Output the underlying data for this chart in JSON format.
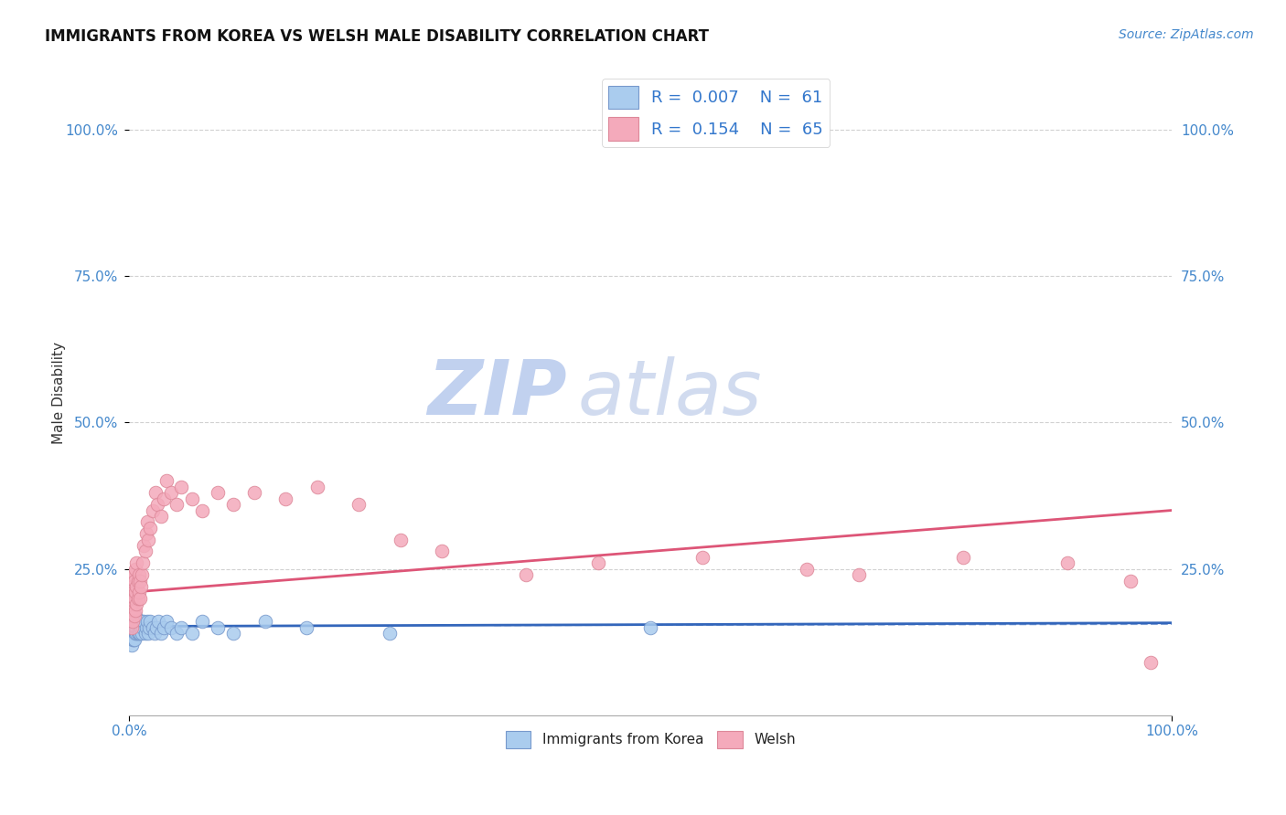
{
  "title": "IMMIGRANTS FROM KOREA VS WELSH MALE DISABILITY CORRELATION CHART",
  "source_text": "Source: ZipAtlas.com",
  "ylabel": "Male Disability",
  "xlim": [
    0.0,
    1.0
  ],
  "ylim": [
    0.0,
    1.1
  ],
  "y_tick_positions": [
    0.25,
    0.5,
    0.75,
    1.0
  ],
  "y_tick_labels": [
    "25.0%",
    "50.0%",
    "75.0%",
    "100.0%"
  ],
  "background_color": "#ffffff",
  "grid_color": "#cccccc",
  "watermark_zip": "ZIP",
  "watermark_atlas": "atlas",
  "watermark_color": "#ccddf0",
  "korea_color": "#aaccee",
  "welsh_color": "#f4aabb",
  "korea_edge_color": "#7799cc",
  "welsh_edge_color": "#dd8899",
  "korea_line_color": "#3366bb",
  "welsh_line_color": "#dd5577",
  "korea_scatter_x": [
    0.001,
    0.001,
    0.001,
    0.001,
    0.002,
    0.002,
    0.002,
    0.002,
    0.002,
    0.003,
    0.003,
    0.003,
    0.003,
    0.004,
    0.004,
    0.004,
    0.004,
    0.005,
    0.005,
    0.005,
    0.006,
    0.006,
    0.006,
    0.007,
    0.007,
    0.007,
    0.008,
    0.008,
    0.009,
    0.009,
    0.01,
    0.01,
    0.011,
    0.012,
    0.012,
    0.013,
    0.014,
    0.015,
    0.016,
    0.017,
    0.018,
    0.019,
    0.02,
    0.022,
    0.024,
    0.026,
    0.028,
    0.03,
    0.033,
    0.036,
    0.04,
    0.045,
    0.05,
    0.06,
    0.07,
    0.085,
    0.1,
    0.13,
    0.17,
    0.25,
    0.5
  ],
  "korea_scatter_y": [
    0.14,
    0.15,
    0.16,
    0.17,
    0.12,
    0.14,
    0.15,
    0.16,
    0.17,
    0.13,
    0.14,
    0.15,
    0.17,
    0.13,
    0.15,
    0.16,
    0.17,
    0.13,
    0.15,
    0.16,
    0.14,
    0.15,
    0.17,
    0.14,
    0.15,
    0.16,
    0.14,
    0.16,
    0.14,
    0.16,
    0.14,
    0.16,
    0.15,
    0.14,
    0.16,
    0.15,
    0.16,
    0.14,
    0.15,
    0.16,
    0.14,
    0.15,
    0.16,
    0.15,
    0.14,
    0.15,
    0.16,
    0.14,
    0.15,
    0.16,
    0.15,
    0.14,
    0.15,
    0.14,
    0.16,
    0.15,
    0.14,
    0.16,
    0.15,
    0.14,
    0.15
  ],
  "welsh_scatter_x": [
    0.001,
    0.001,
    0.001,
    0.002,
    0.002,
    0.002,
    0.002,
    0.003,
    0.003,
    0.003,
    0.004,
    0.004,
    0.004,
    0.005,
    0.005,
    0.005,
    0.006,
    0.006,
    0.006,
    0.007,
    0.007,
    0.007,
    0.008,
    0.008,
    0.009,
    0.009,
    0.01,
    0.01,
    0.011,
    0.012,
    0.013,
    0.014,
    0.015,
    0.016,
    0.017,
    0.018,
    0.02,
    0.022,
    0.025,
    0.027,
    0.03,
    0.033,
    0.036,
    0.04,
    0.045,
    0.05,
    0.06,
    0.07,
    0.085,
    0.1,
    0.12,
    0.15,
    0.18,
    0.22,
    0.26,
    0.3,
    0.38,
    0.45,
    0.55,
    0.65,
    0.7,
    0.8,
    0.9,
    0.96,
    0.98
  ],
  "welsh_scatter_y": [
    0.18,
    0.2,
    0.22,
    0.15,
    0.18,
    0.2,
    0.24,
    0.16,
    0.19,
    0.22,
    0.18,
    0.21,
    0.24,
    0.17,
    0.2,
    0.23,
    0.18,
    0.21,
    0.25,
    0.19,
    0.22,
    0.26,
    0.2,
    0.23,
    0.21,
    0.24,
    0.2,
    0.23,
    0.22,
    0.24,
    0.26,
    0.29,
    0.28,
    0.31,
    0.33,
    0.3,
    0.32,
    0.35,
    0.38,
    0.36,
    0.34,
    0.37,
    0.4,
    0.38,
    0.36,
    0.39,
    0.37,
    0.35,
    0.38,
    0.36,
    0.38,
    0.37,
    0.39,
    0.36,
    0.3,
    0.28,
    0.24,
    0.26,
    0.27,
    0.25,
    0.24,
    0.27,
    0.26,
    0.23,
    0.09
  ],
  "korea_line_x0": 0.0,
  "korea_line_x1": 1.0,
  "korea_line_y0": 0.152,
  "korea_line_y1": 0.158,
  "welsh_line_x0": 0.0,
  "welsh_line_x1": 1.0,
  "welsh_line_y0": 0.21,
  "welsh_line_y1": 0.35
}
